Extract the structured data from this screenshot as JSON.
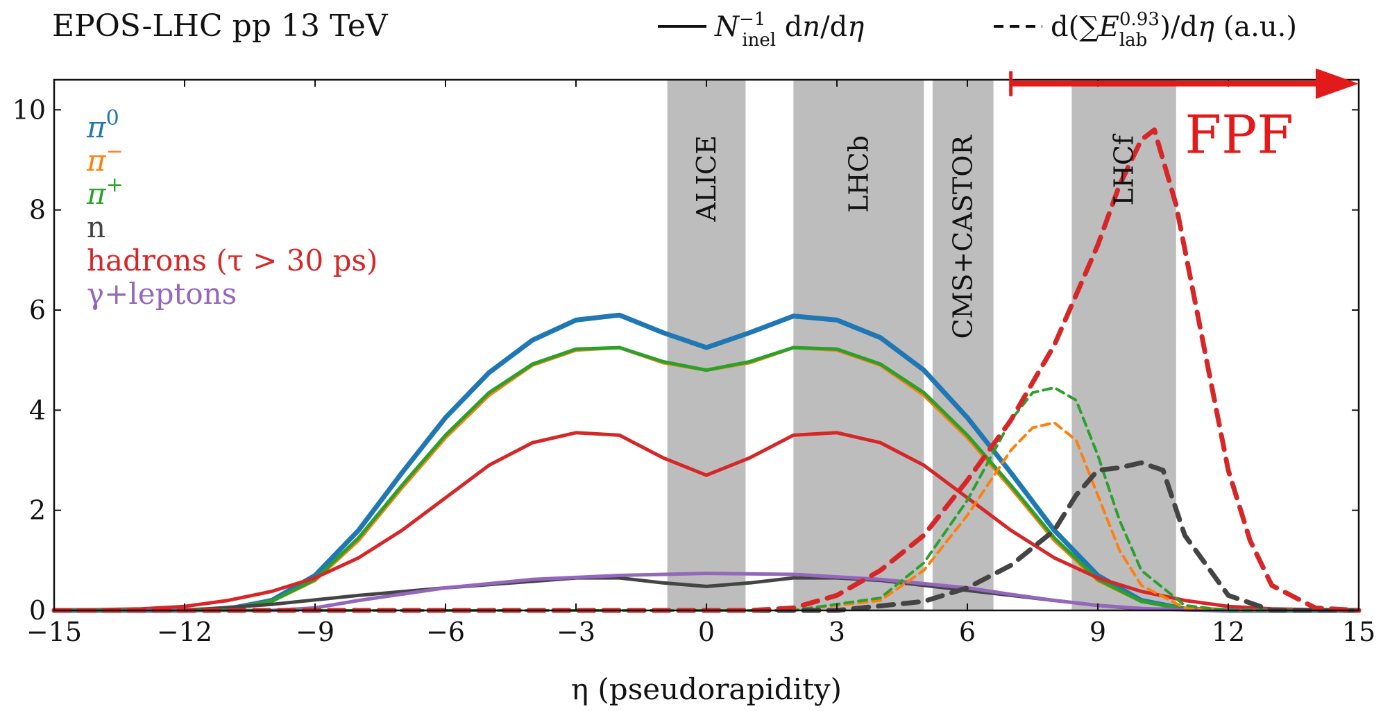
{
  "chart_data": {
    "type": "line",
    "title": "EPOS-LHC pp 13 TeV",
    "xlabel": "η (pseudorapidity)",
    "ylabel": "",
    "xlim": [
      -15,
      15
    ],
    "ylim": [
      0,
      10.6
    ],
    "xticks": [
      -15,
      -12,
      -9,
      -6,
      -3,
      0,
      3,
      6,
      9,
      12,
      15
    ],
    "xtick_labels": [
      "−15",
      "−12",
      "−9",
      "−6",
      "−3",
      "0",
      "3",
      "6",
      "9",
      "12",
      "15"
    ],
    "yticks": [
      0,
      2,
      4,
      6,
      8,
      10
    ],
    "ytick_labels": [
      "0",
      "2",
      "4",
      "6",
      "8",
      "10"
    ],
    "grid": false,
    "line_style_legend": {
      "solid": "N_inel^-1 dn/dη",
      "dashed": "d(ΣE_lab^0.93)/dη (a.u.)"
    },
    "legend_position": "top-left",
    "legend_entries": [
      {
        "label": "π0",
        "color": "#1f77b4"
      },
      {
        "label": "π−",
        "color": "#ff7f0e"
      },
      {
        "label": "π+",
        "color": "#2ca02c"
      },
      {
        "label": "n",
        "color": "#444444"
      },
      {
        "label": "hadrons (τ > 30 ps)",
        "color": "#d62728"
      },
      {
        "label": "γ+leptons",
        "color": "#9467bd"
      }
    ],
    "bands": [
      {
        "name": "ALICE",
        "range": [
          -0.9,
          0.9
        ]
      },
      {
        "name": "LHCb",
        "range": [
          2.0,
          5.0
        ]
      },
      {
        "name": "CMS+CASTOR",
        "range": [
          5.2,
          6.6
        ]
      },
      {
        "name": "LHCf",
        "range": [
          8.4,
          10.8
        ]
      }
    ],
    "annotation": {
      "label": "FPF",
      "arrow_from": 7.0,
      "arrow_to": 15.0,
      "y": 10.55,
      "color": "#e31a1c"
    },
    "series": [
      {
        "name": "π0",
        "style": "solid",
        "color": "#1f77b4",
        "x": [
          -15,
          -12,
          -11,
          -10,
          -9,
          -8,
          -7,
          -6,
          -5,
          -4,
          -3,
          -2,
          -1,
          0,
          1,
          2,
          3,
          4,
          5,
          6,
          7,
          8,
          9,
          10,
          11,
          12,
          13,
          15
        ],
        "y": [
          0,
          0,
          0.03,
          0.2,
          0.7,
          1.6,
          2.75,
          3.85,
          4.75,
          5.4,
          5.8,
          5.9,
          5.55,
          5.25,
          5.55,
          5.88,
          5.8,
          5.45,
          4.8,
          3.85,
          2.75,
          1.6,
          0.7,
          0.2,
          0.03,
          0,
          0,
          0
        ]
      },
      {
        "name": "π−",
        "style": "solid",
        "color": "#ff7f0e",
        "x": [
          -15,
          -12,
          -11,
          -10,
          -9,
          -8,
          -7,
          -6,
          -5,
          -4,
          -3,
          -2,
          -1,
          0,
          1,
          2,
          3,
          4,
          5,
          6,
          7,
          8,
          9,
          10,
          11,
          12,
          13,
          15
        ],
        "y": [
          0,
          0,
          0.03,
          0.18,
          0.6,
          1.4,
          2.45,
          3.45,
          4.3,
          4.9,
          5.2,
          5.25,
          4.95,
          4.8,
          4.95,
          5.25,
          5.2,
          4.9,
          4.3,
          3.45,
          2.45,
          1.4,
          0.6,
          0.18,
          0.03,
          0,
          0,
          0
        ]
      },
      {
        "name": "π+",
        "style": "solid",
        "color": "#2ca02c",
        "x": [
          -15,
          -12,
          -11,
          -10,
          -9,
          -8,
          -7,
          -6,
          -5,
          -4,
          -3,
          -2,
          -1,
          0,
          1,
          2,
          3,
          4,
          5,
          6,
          7,
          8,
          9,
          10,
          11,
          12,
          13,
          15
        ],
        "y": [
          0,
          0,
          0.03,
          0.18,
          0.62,
          1.45,
          2.5,
          3.5,
          4.35,
          4.92,
          5.22,
          5.25,
          4.97,
          4.8,
          4.97,
          5.25,
          5.22,
          4.92,
          4.35,
          3.5,
          2.5,
          1.45,
          0.62,
          0.18,
          0.03,
          0,
          0,
          0
        ]
      },
      {
        "name": "n",
        "style": "solid",
        "color": "#444444",
        "x": [
          -15,
          -12,
          -10,
          -8,
          -6,
          -4,
          -3,
          -2,
          -1,
          0,
          1,
          2,
          3,
          4,
          5,
          6,
          7,
          8,
          9,
          10,
          12,
          15
        ],
        "y": [
          0,
          0,
          0.12,
          0.3,
          0.45,
          0.58,
          0.65,
          0.65,
          0.55,
          0.48,
          0.55,
          0.65,
          0.65,
          0.6,
          0.5,
          0.4,
          0.3,
          0.2,
          0.1,
          0.03,
          0,
          0
        ]
      },
      {
        "name": "hadrons (τ > 30 ps)",
        "style": "solid",
        "color": "#d62728",
        "x": [
          -15,
          -13,
          -12,
          -11,
          -10,
          -9,
          -8,
          -7,
          -6,
          -5,
          -4,
          -3,
          -2,
          -1,
          0,
          1,
          2,
          3,
          4,
          5,
          6,
          7,
          8,
          9,
          10,
          11,
          12,
          13,
          15
        ],
        "y": [
          0,
          0.03,
          0.08,
          0.2,
          0.38,
          0.65,
          1.05,
          1.6,
          2.25,
          2.9,
          3.35,
          3.55,
          3.5,
          3.05,
          2.7,
          3.05,
          3.5,
          3.55,
          3.35,
          2.9,
          2.25,
          1.6,
          1.05,
          0.65,
          0.38,
          0.2,
          0.08,
          0.03,
          0
        ]
      },
      {
        "name": "γ+leptons",
        "style": "solid",
        "color": "#9467bd",
        "x": [
          -15,
          -10,
          -9,
          -8,
          -6,
          -4,
          -2,
          0,
          2,
          4,
          6,
          7,
          8,
          9,
          10,
          11,
          12,
          15
        ],
        "y": [
          0,
          0,
          0.05,
          0.2,
          0.45,
          0.62,
          0.7,
          0.74,
          0.72,
          0.62,
          0.45,
          0.32,
          0.2,
          0.1,
          0.04,
          0.01,
          0,
          0
        ]
      },
      {
        "name": "π− (dashed)",
        "style": "dashed",
        "color": "#ff7f0e",
        "x": [
          -15,
          2,
          4,
          5,
          6,
          7,
          7.5,
          8,
          8.5,
          9,
          9.5,
          10,
          11,
          12,
          15
        ],
        "y": [
          0,
          0,
          0.2,
          0.8,
          1.9,
          3.2,
          3.65,
          3.75,
          3.4,
          2.3,
          1.2,
          0.5,
          0.05,
          0,
          0
        ]
      },
      {
        "name": "π+ (dashed)",
        "style": "dashed",
        "color": "#2ca02c",
        "x": [
          -15,
          2,
          4,
          5,
          6,
          7,
          7.5,
          8,
          8.5,
          9,
          9.5,
          10,
          11,
          12,
          15
        ],
        "y": [
          0,
          0,
          0.25,
          0.95,
          2.2,
          3.8,
          4.35,
          4.45,
          4.2,
          3.1,
          1.8,
          0.8,
          0.1,
          0,
          0
        ]
      },
      {
        "name": "n (dashed)",
        "style": "dashed",
        "color": "#444444",
        "x": [
          -15,
          3,
          5,
          6,
          7,
          8,
          8.5,
          9,
          9.5,
          10,
          10.5,
          11,
          12,
          13,
          15
        ],
        "y": [
          0,
          0,
          0.18,
          0.45,
          0.9,
          1.6,
          2.3,
          2.8,
          2.85,
          2.95,
          2.8,
          1.5,
          0.3,
          0,
          0
        ]
      },
      {
        "name": "hadrons (dashed)",
        "style": "dashed",
        "color": "#d62728",
        "x": [
          -15,
          1,
          2,
          3,
          4,
          5,
          6,
          7,
          8,
          9,
          9.5,
          10,
          10.3,
          10.8,
          11.5,
          12,
          12.5,
          13,
          14,
          15
        ],
        "y": [
          0,
          0,
          0.05,
          0.3,
          0.8,
          1.5,
          2.6,
          3.8,
          5.3,
          7.3,
          8.5,
          9.4,
          9.6,
          8.1,
          5.0,
          2.8,
          1.4,
          0.5,
          0.05,
          0
        ]
      }
    ]
  }
}
